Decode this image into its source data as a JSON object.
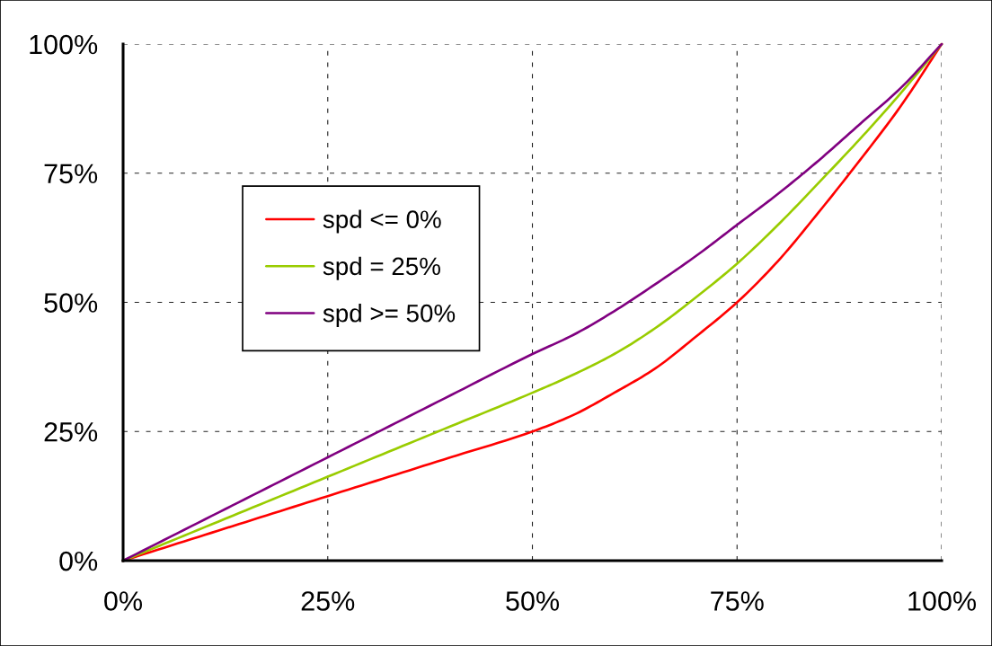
{
  "chart_data": {
    "type": "line",
    "x": [
      0,
      10,
      20,
      30,
      40,
      50,
      55,
      60,
      65,
      70,
      75,
      80,
      85,
      90,
      95,
      100
    ],
    "series": [
      {
        "name": "spd <= 0%",
        "color": "#ff0000",
        "values": [
          0,
          5,
          10,
          15,
          20,
          25,
          28.2,
          32.5,
          37.2,
          43.4,
          50,
          58,
          67.5,
          77.5,
          88,
          100
        ]
      },
      {
        "name": "spd = 25%",
        "color": "#99cc00",
        "values": [
          0,
          6.5,
          13,
          19.5,
          26,
          32.5,
          36,
          40,
          45,
          51,
          57.5,
          65,
          73.2,
          81.6,
          90.5,
          100
        ]
      },
      {
        "name": "spd >= 50%",
        "color": "#800080",
        "values": [
          0,
          8,
          16,
          24,
          32,
          40,
          43.7,
          48.3,
          53.5,
          59,
          65,
          71,
          77.5,
          84.5,
          91.5,
          100
        ]
      }
    ],
    "xlim": [
      0,
      100
    ],
    "ylim": [
      0,
      100
    ],
    "xticks": [
      {
        "value": 0,
        "label": "0%"
      },
      {
        "value": 25,
        "label": "25%"
      },
      {
        "value": 50,
        "label": "50%"
      },
      {
        "value": 75,
        "label": "75%"
      },
      {
        "value": 100,
        "label": "100%"
      }
    ],
    "yticks": [
      {
        "value": 0,
        "label": "0%"
      },
      {
        "value": 25,
        "label": "25%"
      },
      {
        "value": 50,
        "label": "50%"
      },
      {
        "value": 75,
        "label": "75%"
      },
      {
        "value": 100,
        "label": "100%"
      }
    ],
    "grid": true,
    "legend": "top left",
    "marker": "none",
    "line_style": "solid"
  }
}
